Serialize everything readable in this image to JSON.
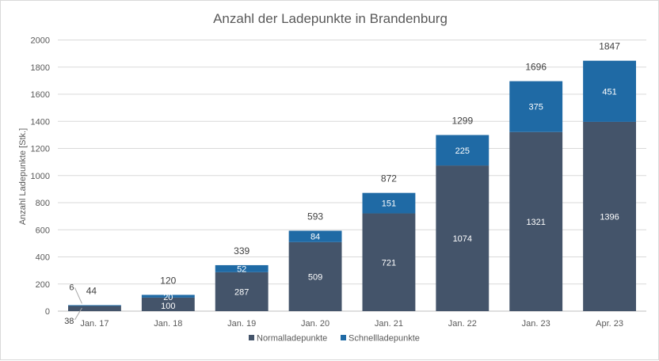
{
  "colors": {
    "normal": "#44546a",
    "fast": "#1f6aa5",
    "grid": "#d9d9d9",
    "axis": "#bfbfbf",
    "label_light": "#ffffff",
    "label_dark": "#404040"
  },
  "chart_data": {
    "type": "bar",
    "stacked": true,
    "title": "Anzahl der Ladepunkte in Brandenburg",
    "xlabel": "",
    "ylabel": "Anzahl Ladepunkte [Stk.]",
    "ylim": [
      0,
      2000
    ],
    "yticks": [
      0,
      200,
      400,
      600,
      800,
      1000,
      1200,
      1400,
      1600,
      1800,
      2000
    ],
    "categories": [
      "Jan. 17",
      "Jan. 18",
      "Jan. 19",
      "Jan. 20",
      "Jan. 21",
      "Jan. 22",
      "Jan. 23",
      "Apr. 23"
    ],
    "series": [
      {
        "name": "Normalladepunkte",
        "values": [
          38,
          100,
          287,
          509,
          721,
          1074,
          1321,
          1396
        ]
      },
      {
        "name": "Schnellladepunkte",
        "values": [
          6,
          20,
          52,
          84,
          151,
          225,
          375,
          451
        ]
      }
    ],
    "totals": [
      44,
      120,
      339,
      593,
      872,
      1299,
      1696,
      1847
    ],
    "legend_position": "bottom",
    "grid": true
  }
}
